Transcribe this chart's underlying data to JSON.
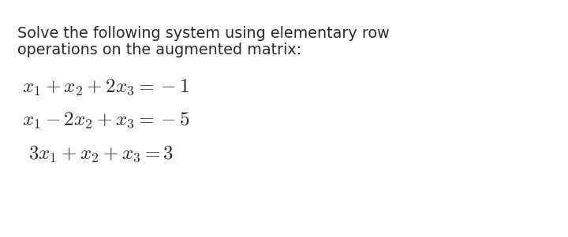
{
  "background_color": "#ffffff",
  "text_color": "#2b2b2b",
  "header_line1": "Solve the following system using elementary row",
  "header_line2": "operations on the augmented matrix:",
  "header_fontsize": 13.8,
  "header_fontfamily": "DejaVu Sans",
  "eq1": "$x_1 + x_2 + 2x_3 = -1$",
  "eq2": "$x_1 - 2x_2 + x_3 = -5$",
  "eq3": "$3x_1 + x_2 + x_3 = 3$",
  "eq_fontsize": 18,
  "fig_width": 7.2,
  "fig_height": 3.01,
  "dpi": 100
}
